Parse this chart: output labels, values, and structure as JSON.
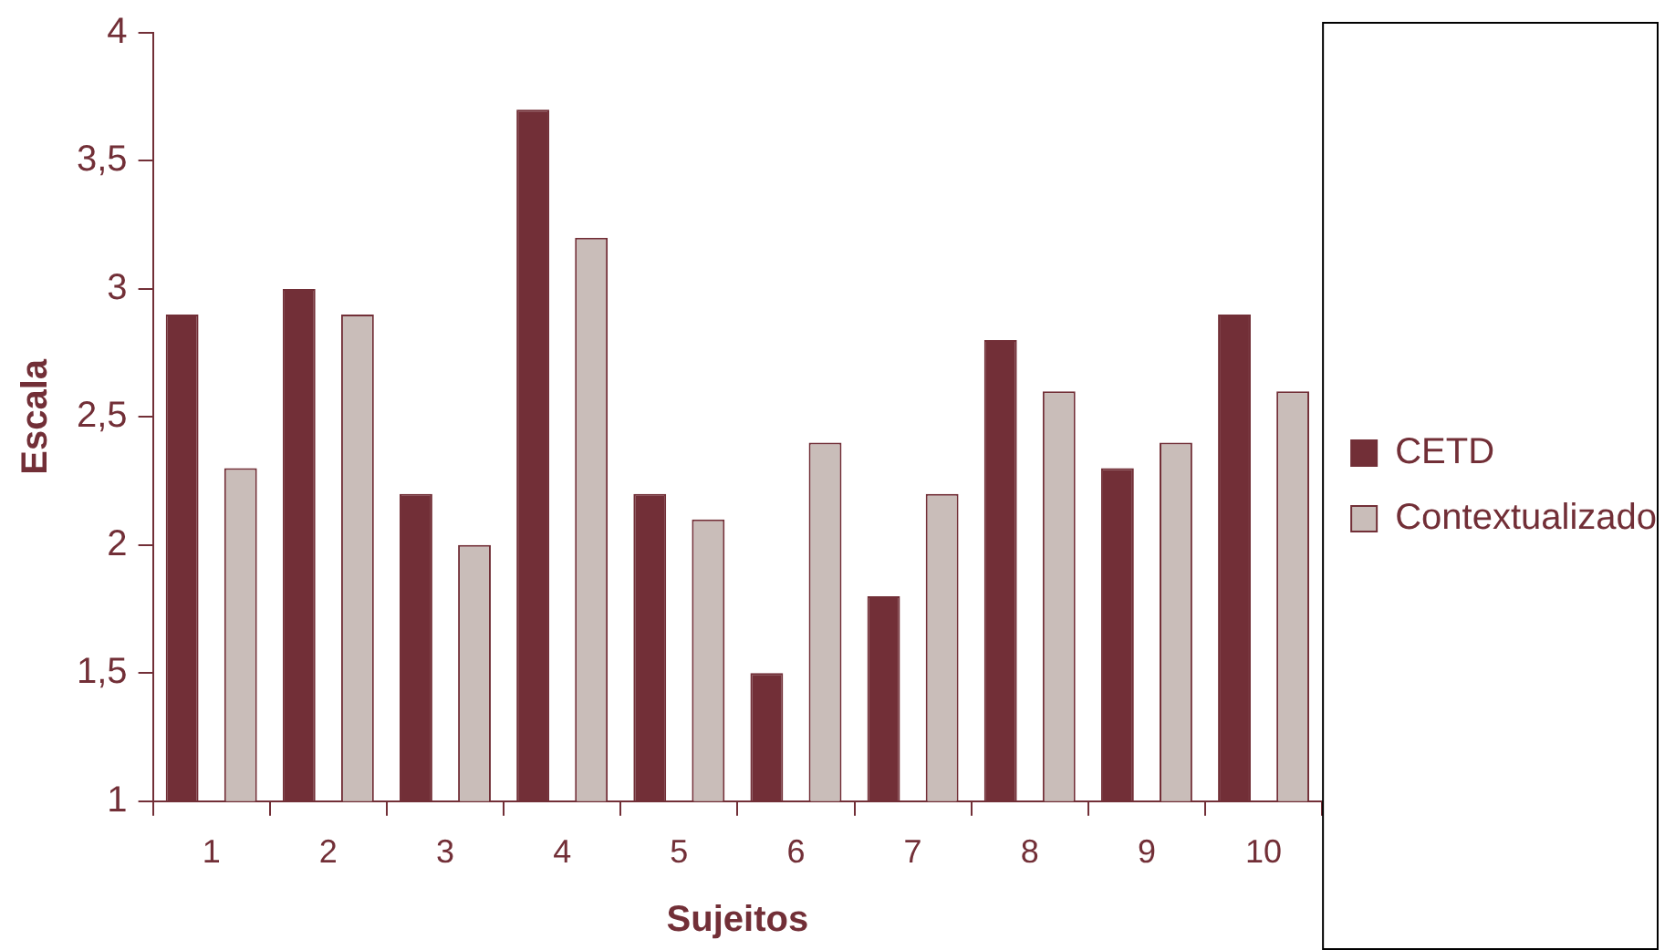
{
  "chart_data": {
    "type": "bar",
    "xlabel": "Sujeitos",
    "ylabel": "Escala",
    "categories": [
      "1",
      "2",
      "3",
      "4",
      "5",
      "6",
      "7",
      "8",
      "9",
      "10"
    ],
    "series": [
      {
        "name": "CETD",
        "color": "#722f37",
        "values": [
          2.9,
          3.0,
          2.2,
          3.7,
          2.2,
          1.5,
          1.8,
          2.8,
          2.3,
          2.9
        ]
      },
      {
        "name": "Contextualizado",
        "color": "#c9bdb9",
        "values": [
          2.3,
          2.9,
          2.0,
          3.2,
          2.1,
          2.4,
          2.2,
          2.6,
          2.4,
          2.6
        ]
      }
    ],
    "ylim": [
      1,
      4
    ],
    "yticks": [
      1,
      {
        "value": 1.5,
        "label": "1,5"
      },
      2,
      {
        "value": 2.5,
        "label": "2,5"
      },
      3,
      {
        "value": 3.5,
        "label": "3,5"
      },
      4
    ],
    "grid": false,
    "legend": "right"
  }
}
